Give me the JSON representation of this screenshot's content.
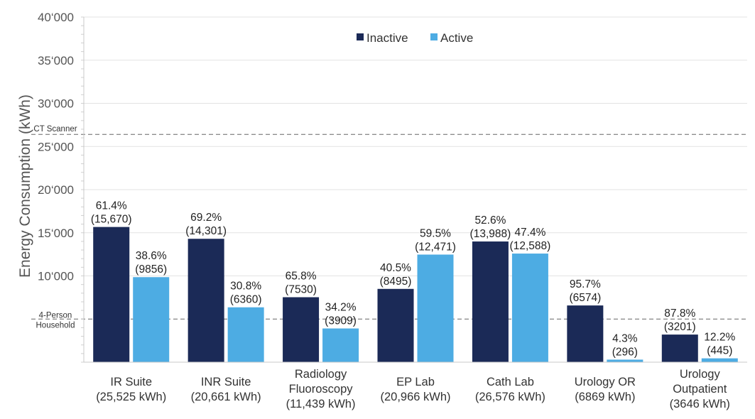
{
  "chart_data": {
    "type": "bar",
    "title": "",
    "ylabel": "Energy Consumption (kWh)",
    "xlabel": "",
    "ylim": [
      0,
      40000
    ],
    "yticks": [
      {
        "value": 10000,
        "label": "10‘000"
      },
      {
        "value": 15000,
        "label": "15‘000"
      },
      {
        "value": 20000,
        "label": "20‘000"
      },
      {
        "value": 25000,
        "label": "25‘000"
      },
      {
        "value": 30000,
        "label": "30‘000"
      },
      {
        "value": 35000,
        "label": "35‘000"
      },
      {
        "value": 40000,
        "label": "40‘000"
      }
    ],
    "grid": true,
    "legend_position": "top-center",
    "categories": [
      [
        "IR Suite",
        "(25,525 kWh)"
      ],
      [
        "INR Suite",
        "(20,661 kWh)"
      ],
      [
        "Radiology",
        "Fluoroscopy",
        "(11,439 kWh)"
      ],
      [
        "EP Lab",
        "(20,966 kWh)"
      ],
      [
        "Cath Lab",
        "(26,576 kWh)"
      ],
      [
        "Urology OR",
        "(6869 kWh)"
      ],
      [
        "Urology",
        "Outpatient",
        "(3646 kWh)"
      ]
    ],
    "series": [
      {
        "name": "Inactive",
        "color": "#1b2a57",
        "values": [
          15670,
          14301,
          7530,
          8495,
          13988,
          6574,
          3201
        ],
        "labels": [
          [
            "61.4%",
            "(15,670)"
          ],
          [
            "69.2%",
            "(14,301)"
          ],
          [
            "65.8%",
            "(7530)"
          ],
          [
            "40.5%",
            "(8495)"
          ],
          [
            "52.6%",
            "(13,988)"
          ],
          [
            "95.7%",
            "(6574)"
          ],
          [
            "87.8%",
            "(3201)"
          ]
        ]
      },
      {
        "name": "Active",
        "color": "#4dace3",
        "values": [
          9856,
          6360,
          3909,
          12471,
          12588,
          296,
          445
        ],
        "labels": [
          [
            "38.6%",
            "(9856)"
          ],
          [
            "30.8%",
            "(6360)"
          ],
          [
            "34.2%",
            "(3909)"
          ],
          [
            "59.5%",
            "(12,471)"
          ],
          [
            "47.4%",
            "(12,588)"
          ],
          [
            "4.3%",
            "(296)"
          ],
          [
            "12.2%",
            "(445)"
          ]
        ]
      }
    ],
    "reference_lines": [
      {
        "value": 26400,
        "label": [
          "CT Scanner"
        ],
        "style": "dashed"
      },
      {
        "value": 5000,
        "label": [
          "4-Person",
          "Household"
        ],
        "style": "dashed"
      }
    ]
  }
}
